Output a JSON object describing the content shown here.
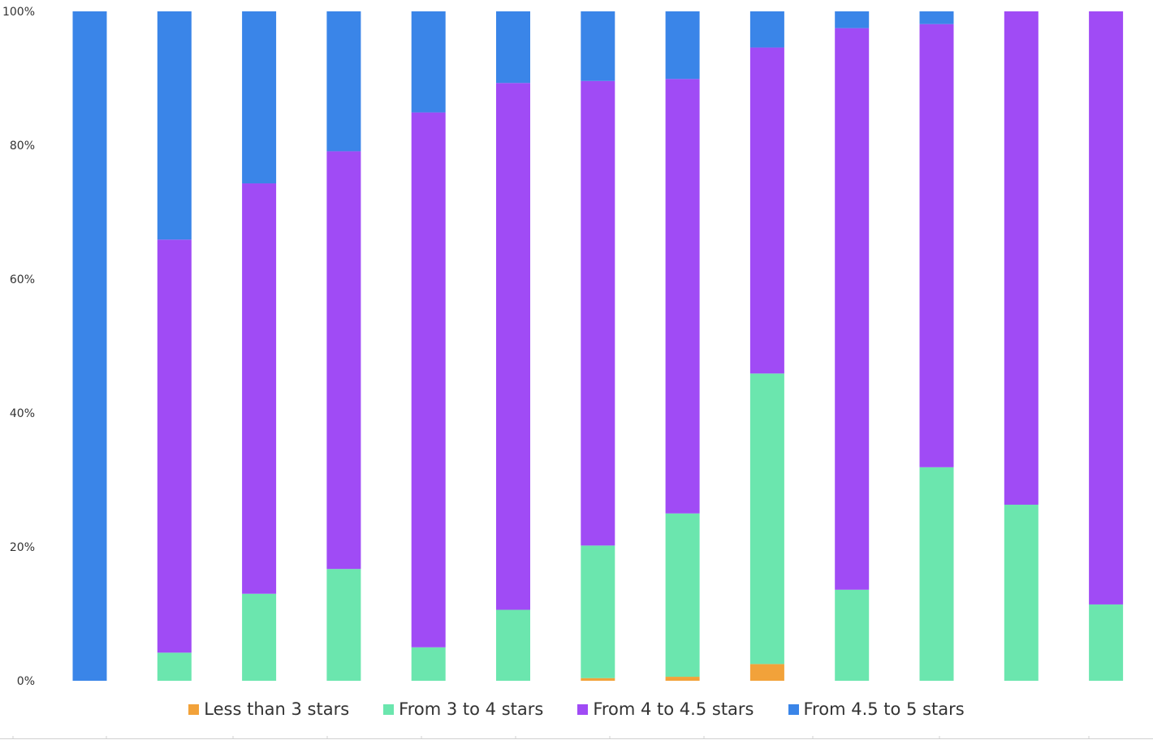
{
  "chart_data": {
    "type": "bar",
    "stacked": true,
    "percent_stacked": true,
    "title": "",
    "xlabel": "",
    "ylabel": "",
    "ylim": [
      0,
      100
    ],
    "y_ticks": [
      "0%",
      "20%",
      "40%",
      "60%",
      "80%",
      "100%"
    ],
    "grid": false,
    "legend_position": "bottom",
    "categories": [
      "",
      "",
      "",
      "",
      "",
      "",
      "",
      "",
      "",
      "",
      "",
      "",
      ""
    ],
    "series": [
      {
        "name": "Less than 3 stars",
        "color": "#F2A23A",
        "values": [
          0,
          0,
          0,
          0,
          0,
          0,
          0.4,
          0.6,
          2.5,
          0,
          0,
          0,
          0
        ]
      },
      {
        "name": "From 3 to 4 stars",
        "color": "#6BE6AE",
        "values": [
          0,
          4.2,
          13.0,
          16.7,
          5.0,
          10.6,
          19.8,
          24.4,
          43.4,
          13.6,
          31.9,
          26.3,
          11.4
        ]
      },
      {
        "name": "From 4 to 4.5 stars",
        "color": "#A04BF5",
        "values": [
          0,
          61.7,
          61.3,
          62.4,
          79.9,
          78.7,
          69.4,
          64.9,
          48.7,
          83.9,
          66.2,
          73.7,
          88.6
        ]
      },
      {
        "name": "From 4.5 to 5 stars",
        "color": "#3A85E8",
        "values": [
          100,
          34.1,
          25.7,
          20.9,
          15.1,
          10.7,
          10.4,
          10.1,
          5.4,
          2.5,
          1.9,
          0,
          0
        ]
      }
    ]
  }
}
